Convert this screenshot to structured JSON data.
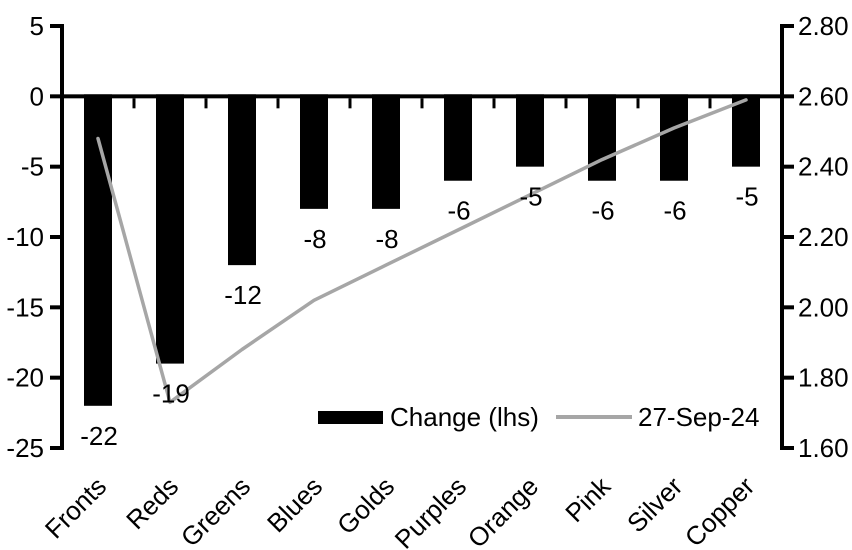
{
  "chart_data": {
    "type": "bar+line combo",
    "title": "",
    "categories": [
      "Fronts",
      "Reds",
      "Greens",
      "Blues",
      "Golds",
      "Purples",
      "Orange",
      "Pink",
      "Silver",
      "Copper"
    ],
    "series": [
      {
        "name": "Change (lhs)",
        "type": "bar",
        "axis": "left",
        "color": "#000000",
        "values": [
          -22,
          -19,
          -12,
          -8,
          -8,
          -6,
          -5,
          -6,
          -6,
          -5
        ],
        "data_labels": [
          "-22",
          "-19",
          "-12",
          "-8",
          "-8",
          "-6",
          "-5",
          "-6",
          "-6",
          "-5"
        ]
      },
      {
        "name": "27-Sep-24",
        "type": "line",
        "axis": "right",
        "color": "#a6a6a6",
        "values": [
          2.48,
          1.73,
          1.88,
          2.02,
          2.12,
          2.22,
          2.32,
          2.42,
          2.51,
          2.59
        ]
      }
    ],
    "left_axis": {
      "min": -25,
      "max": 5,
      "ticks": [
        "5",
        "0",
        "-5",
        "-10",
        "-15",
        "-20",
        "-25"
      ]
    },
    "right_axis": {
      "min": 1.6,
      "max": 2.8,
      "ticks": [
        "2.80",
        "2.60",
        "2.40",
        "2.20",
        "2.00",
        "1.80",
        "1.60"
      ]
    },
    "grid": false,
    "legend_position": "bottom-center-inside",
    "legend": {
      "items": [
        {
          "label": "Change (lhs)",
          "swatch": "bar",
          "color": "#000000"
        },
        {
          "label": "27-Sep-24",
          "swatch": "line",
          "color": "#a6a6a6"
        }
      ]
    }
  },
  "colors": {
    "bar": "#000000",
    "line": "#a6a6a6",
    "axis": "#000000",
    "text": "#000000",
    "background": "#ffffff"
  }
}
